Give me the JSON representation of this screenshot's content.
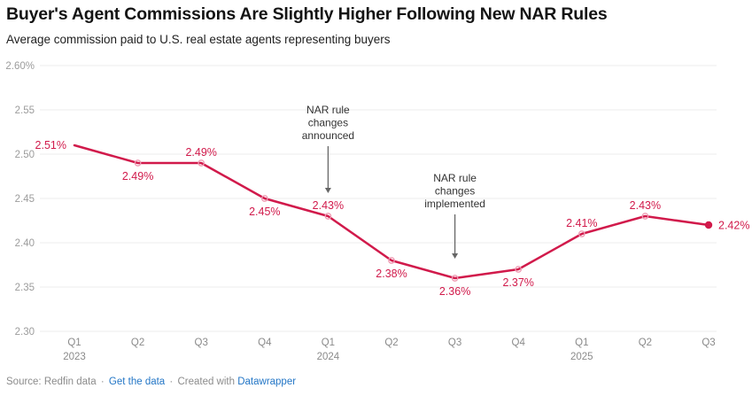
{
  "chart_data": {
    "type": "line",
    "title": "Buyer's Agent Commissions Are Slightly Higher Following New NAR Rules",
    "subtitle": "Average commission paid to U.S. real estate agents representing buyers",
    "x": [
      "Q1 2023",
      "Q2 2023",
      "Q3 2023",
      "Q4 2023",
      "Q1 2024",
      "Q2 2024",
      "Q3 2024",
      "Q4 2024",
      "Q1 2025",
      "Q2 2025",
      "Q3 2025"
    ],
    "values": [
      2.51,
      2.49,
      2.49,
      2.45,
      2.43,
      2.38,
      2.36,
      2.37,
      2.41,
      2.43,
      2.42
    ],
    "point_labels": [
      "2.51%",
      "2.49%",
      "2.49%",
      "2.45%",
      "2.43%",
      "2.38%",
      "2.36%",
      "2.37%",
      "2.41%",
      "2.43%",
      "2.42%"
    ],
    "label_positions": [
      "left",
      "below",
      "above",
      "below",
      "above",
      "below",
      "below",
      "below",
      "above",
      "above",
      "right"
    ],
    "ylim": [
      2.3,
      2.6
    ],
    "grid": true,
    "y_ticks": [
      {
        "value": 2.6,
        "label": "2.60%"
      },
      {
        "value": 2.55,
        "label": "2.55"
      },
      {
        "value": 2.5,
        "label": "2.50"
      },
      {
        "value": 2.45,
        "label": "2.45"
      },
      {
        "value": 2.4,
        "label": "2.40"
      },
      {
        "value": 2.35,
        "label": "2.35"
      },
      {
        "value": 2.3,
        "label": "2.30"
      }
    ],
    "x_ticks": [
      {
        "label": "Q1",
        "year": "2023"
      },
      {
        "label": "Q2"
      },
      {
        "label": "Q3"
      },
      {
        "label": "Q4"
      },
      {
        "label": "Q1",
        "year": "2024"
      },
      {
        "label": "Q2"
      },
      {
        "label": "Q3"
      },
      {
        "label": "Q4"
      },
      {
        "label": "Q1",
        "year": "2025"
      },
      {
        "label": "Q2"
      },
      {
        "label": "Q3"
      }
    ],
    "annotations": [
      {
        "lines": [
          "NAR rule",
          "changes",
          "announced"
        ],
        "target_index": 4,
        "target_x": "Q1 2024"
      },
      {
        "lines": [
          "NAR rule",
          "changes",
          "implemented"
        ],
        "target_index": 6,
        "target_x": "Q3 2024"
      }
    ],
    "colors": {
      "line": "#d11a4b",
      "marker_ring": "#ef9cb4",
      "grid": "#ececec",
      "y_axis_text": "#9c9c9c",
      "x_axis_text": "#8b8b8b",
      "annotation_text": "#333333",
      "arrow": "#666666"
    }
  },
  "footer": {
    "source": "Source: Redfin data",
    "sep": "·",
    "get_data": "Get the data",
    "created": "Created with",
    "tool": "Datawrapper"
  }
}
